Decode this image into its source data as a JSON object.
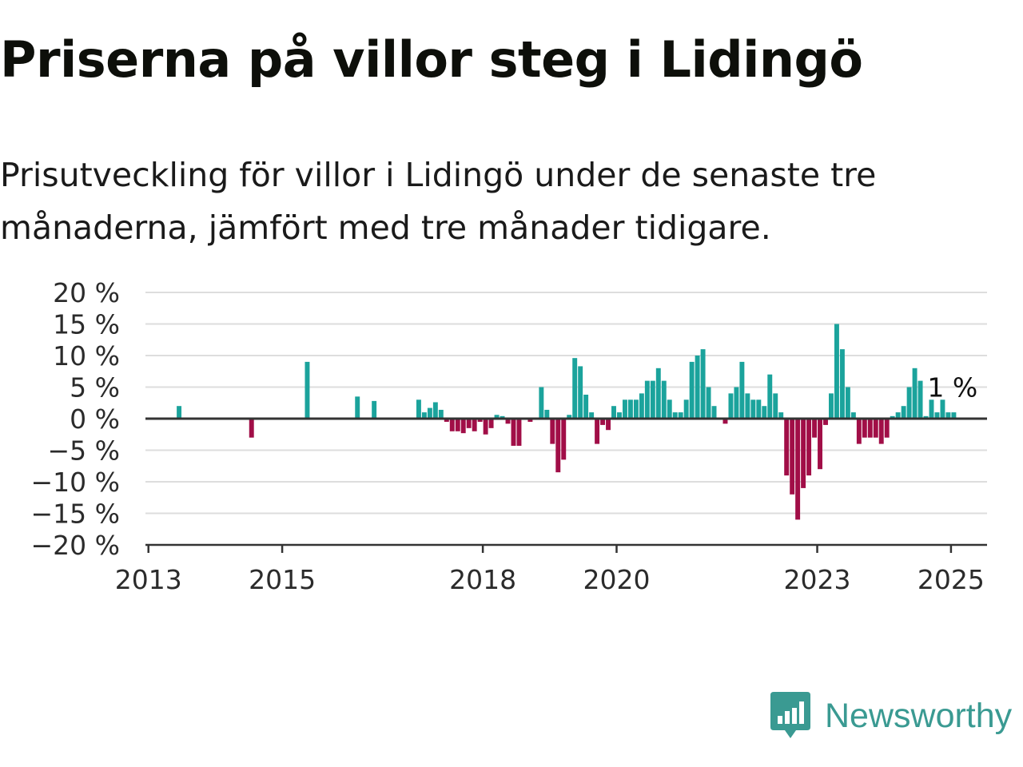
{
  "title": "Priserna på villor steg i Lidingö",
  "subtitle": "Prisutveckling för villor i Lidingö under de senaste tre månaderna, jämfört med tre månader tidigare.",
  "brand": {
    "name": "Newsworthy",
    "icon": "newsworthy-logo-icon"
  },
  "colors": {
    "positive": "#1ba39c",
    "negative": "#a10e47",
    "grid": "#dddddd",
    "axis": "#333333",
    "brand": "#3a9a92"
  },
  "chart_data": {
    "type": "bar",
    "title": "Priserna på villor steg i Lidingö",
    "xlabel": "",
    "ylabel": "",
    "ylim": [
      -20,
      20
    ],
    "xlim": [
      "2012-12-15",
      "2025-07-15"
    ],
    "grid": true,
    "ticks_y": [
      {
        "value": 20,
        "label": "20 %"
      },
      {
        "value": 15,
        "label": "15 %"
      },
      {
        "value": 10,
        "label": "10 %"
      },
      {
        "value": 5,
        "label": "5 %"
      },
      {
        "value": 0,
        "label": "0 %"
      },
      {
        "value": -5,
        "label": "−5 %"
      },
      {
        "value": -10,
        "label": "−10 %"
      },
      {
        "value": -15,
        "label": "−15 %"
      },
      {
        "value": -20,
        "label": "−20 %"
      }
    ],
    "ticks_x": [
      {
        "date": "2013-01",
        "label": "2013"
      },
      {
        "date": "2015-01",
        "label": "2015"
      },
      {
        "date": "2018-01",
        "label": "2018"
      },
      {
        "date": "2020-01",
        "label": "2020"
      },
      {
        "date": "2023-01",
        "label": "2023"
      },
      {
        "date": "2025-01",
        "label": "2025"
      }
    ],
    "annotation": {
      "date": "2025-01",
      "value": 1,
      "label": "1 %"
    },
    "series": [
      {
        "values": [
          {
            "date": "2013-06",
            "value": 2.0
          },
          {
            "date": "2014-07",
            "value": -3.0
          },
          {
            "date": "2015-05",
            "value": 9.0
          },
          {
            "date": "2016-02",
            "value": 3.5
          },
          {
            "date": "2016-05",
            "value": 2.8
          },
          {
            "date": "2017-01",
            "value": 3.0
          },
          {
            "date": "2017-02",
            "value": 1.0
          },
          {
            "date": "2017-03",
            "value": 1.7
          },
          {
            "date": "2017-04",
            "value": 2.6
          },
          {
            "date": "2017-05",
            "value": 1.4
          },
          {
            "date": "2017-06",
            "value": -0.5
          },
          {
            "date": "2017-07",
            "value": -2.0
          },
          {
            "date": "2017-08",
            "value": -2.0
          },
          {
            "date": "2017-09",
            "value": -2.3
          },
          {
            "date": "2017-10",
            "value": -1.5
          },
          {
            "date": "2017-11",
            "value": -2.0
          },
          {
            "date": "2017-12",
            "value": -0.5
          },
          {
            "date": "2018-01",
            "value": -2.5
          },
          {
            "date": "2018-02",
            "value": -1.5
          },
          {
            "date": "2018-03",
            "value": 0.6
          },
          {
            "date": "2018-04",
            "value": 0.4
          },
          {
            "date": "2018-05",
            "value": -0.8
          },
          {
            "date": "2018-06",
            "value": -4.3
          },
          {
            "date": "2018-07",
            "value": -4.3
          },
          {
            "date": "2018-09",
            "value": -0.5
          },
          {
            "date": "2018-11",
            "value": 5.0
          },
          {
            "date": "2018-12",
            "value": 1.4
          },
          {
            "date": "2019-01",
            "value": -4.0
          },
          {
            "date": "2019-02",
            "value": -8.5
          },
          {
            "date": "2019-03",
            "value": -6.5
          },
          {
            "date": "2019-04",
            "value": 0.6
          },
          {
            "date": "2019-05",
            "value": 9.6
          },
          {
            "date": "2019-06",
            "value": 8.3
          },
          {
            "date": "2019-07",
            "value": 3.8
          },
          {
            "date": "2019-08",
            "value": 1.0
          },
          {
            "date": "2019-09",
            "value": -4.0
          },
          {
            "date": "2019-10",
            "value": -1.0
          },
          {
            "date": "2019-11",
            "value": -1.8
          },
          {
            "date": "2019-12",
            "value": 2.0
          },
          {
            "date": "2020-01",
            "value": 1.0
          },
          {
            "date": "2020-02",
            "value": 3.0
          },
          {
            "date": "2020-03",
            "value": 3.0
          },
          {
            "date": "2020-04",
            "value": 3.0
          },
          {
            "date": "2020-05",
            "value": 4.0
          },
          {
            "date": "2020-06",
            "value": 6.0
          },
          {
            "date": "2020-07",
            "value": 6.0
          },
          {
            "date": "2020-08",
            "value": 8.0
          },
          {
            "date": "2020-09",
            "value": 6.0
          },
          {
            "date": "2020-10",
            "value": 3.0
          },
          {
            "date": "2020-11",
            "value": 1.0
          },
          {
            "date": "2020-12",
            "value": 1.0
          },
          {
            "date": "2021-01",
            "value": 3.0
          },
          {
            "date": "2021-02",
            "value": 9.0
          },
          {
            "date": "2021-03",
            "value": 10.0
          },
          {
            "date": "2021-04",
            "value": 11.0
          },
          {
            "date": "2021-05",
            "value": 5.0
          },
          {
            "date": "2021-06",
            "value": 2.0
          },
          {
            "date": "2021-08",
            "value": -0.8
          },
          {
            "date": "2021-09",
            "value": 4.0
          },
          {
            "date": "2021-10",
            "value": 5.0
          },
          {
            "date": "2021-11",
            "value": 9.0
          },
          {
            "date": "2021-12",
            "value": 4.0
          },
          {
            "date": "2022-01",
            "value": 3.0
          },
          {
            "date": "2022-02",
            "value": 3.0
          },
          {
            "date": "2022-03",
            "value": 2.0
          },
          {
            "date": "2022-04",
            "value": 7.0
          },
          {
            "date": "2022-05",
            "value": 4.0
          },
          {
            "date": "2022-06",
            "value": 1.0
          },
          {
            "date": "2022-07",
            "value": -9.0
          },
          {
            "date": "2022-08",
            "value": -12.0
          },
          {
            "date": "2022-09",
            "value": -16.0
          },
          {
            "date": "2022-10",
            "value": -11.0
          },
          {
            "date": "2022-11",
            "value": -9.0
          },
          {
            "date": "2022-12",
            "value": -3.0
          },
          {
            "date": "2023-01",
            "value": -8.0
          },
          {
            "date": "2023-02",
            "value": -1.0
          },
          {
            "date": "2023-03",
            "value": 4.0
          },
          {
            "date": "2023-04",
            "value": 15.0
          },
          {
            "date": "2023-05",
            "value": 11.0
          },
          {
            "date": "2023-06",
            "value": 5.0
          },
          {
            "date": "2023-07",
            "value": 1.0
          },
          {
            "date": "2023-08",
            "value": -4.0
          },
          {
            "date": "2023-09",
            "value": -3.0
          },
          {
            "date": "2023-10",
            "value": -3.0
          },
          {
            "date": "2023-11",
            "value": -3.0
          },
          {
            "date": "2023-12",
            "value": -4.0
          },
          {
            "date": "2024-01",
            "value": -3.0
          },
          {
            "date": "2024-02",
            "value": 0.4
          },
          {
            "date": "2024-03",
            "value": 1.0
          },
          {
            "date": "2024-04",
            "value": 2.0
          },
          {
            "date": "2024-05",
            "value": 5.0
          },
          {
            "date": "2024-06",
            "value": 8.0
          },
          {
            "date": "2024-07",
            "value": 6.0
          },
          {
            "date": "2024-08",
            "value": 0.4
          },
          {
            "date": "2024-09",
            "value": 3.0
          },
          {
            "date": "2024-10",
            "value": 1.0
          },
          {
            "date": "2024-11",
            "value": 3.0
          },
          {
            "date": "2024-12",
            "value": 1.0
          },
          {
            "date": "2025-01",
            "value": 1.0
          }
        ]
      }
    ]
  }
}
